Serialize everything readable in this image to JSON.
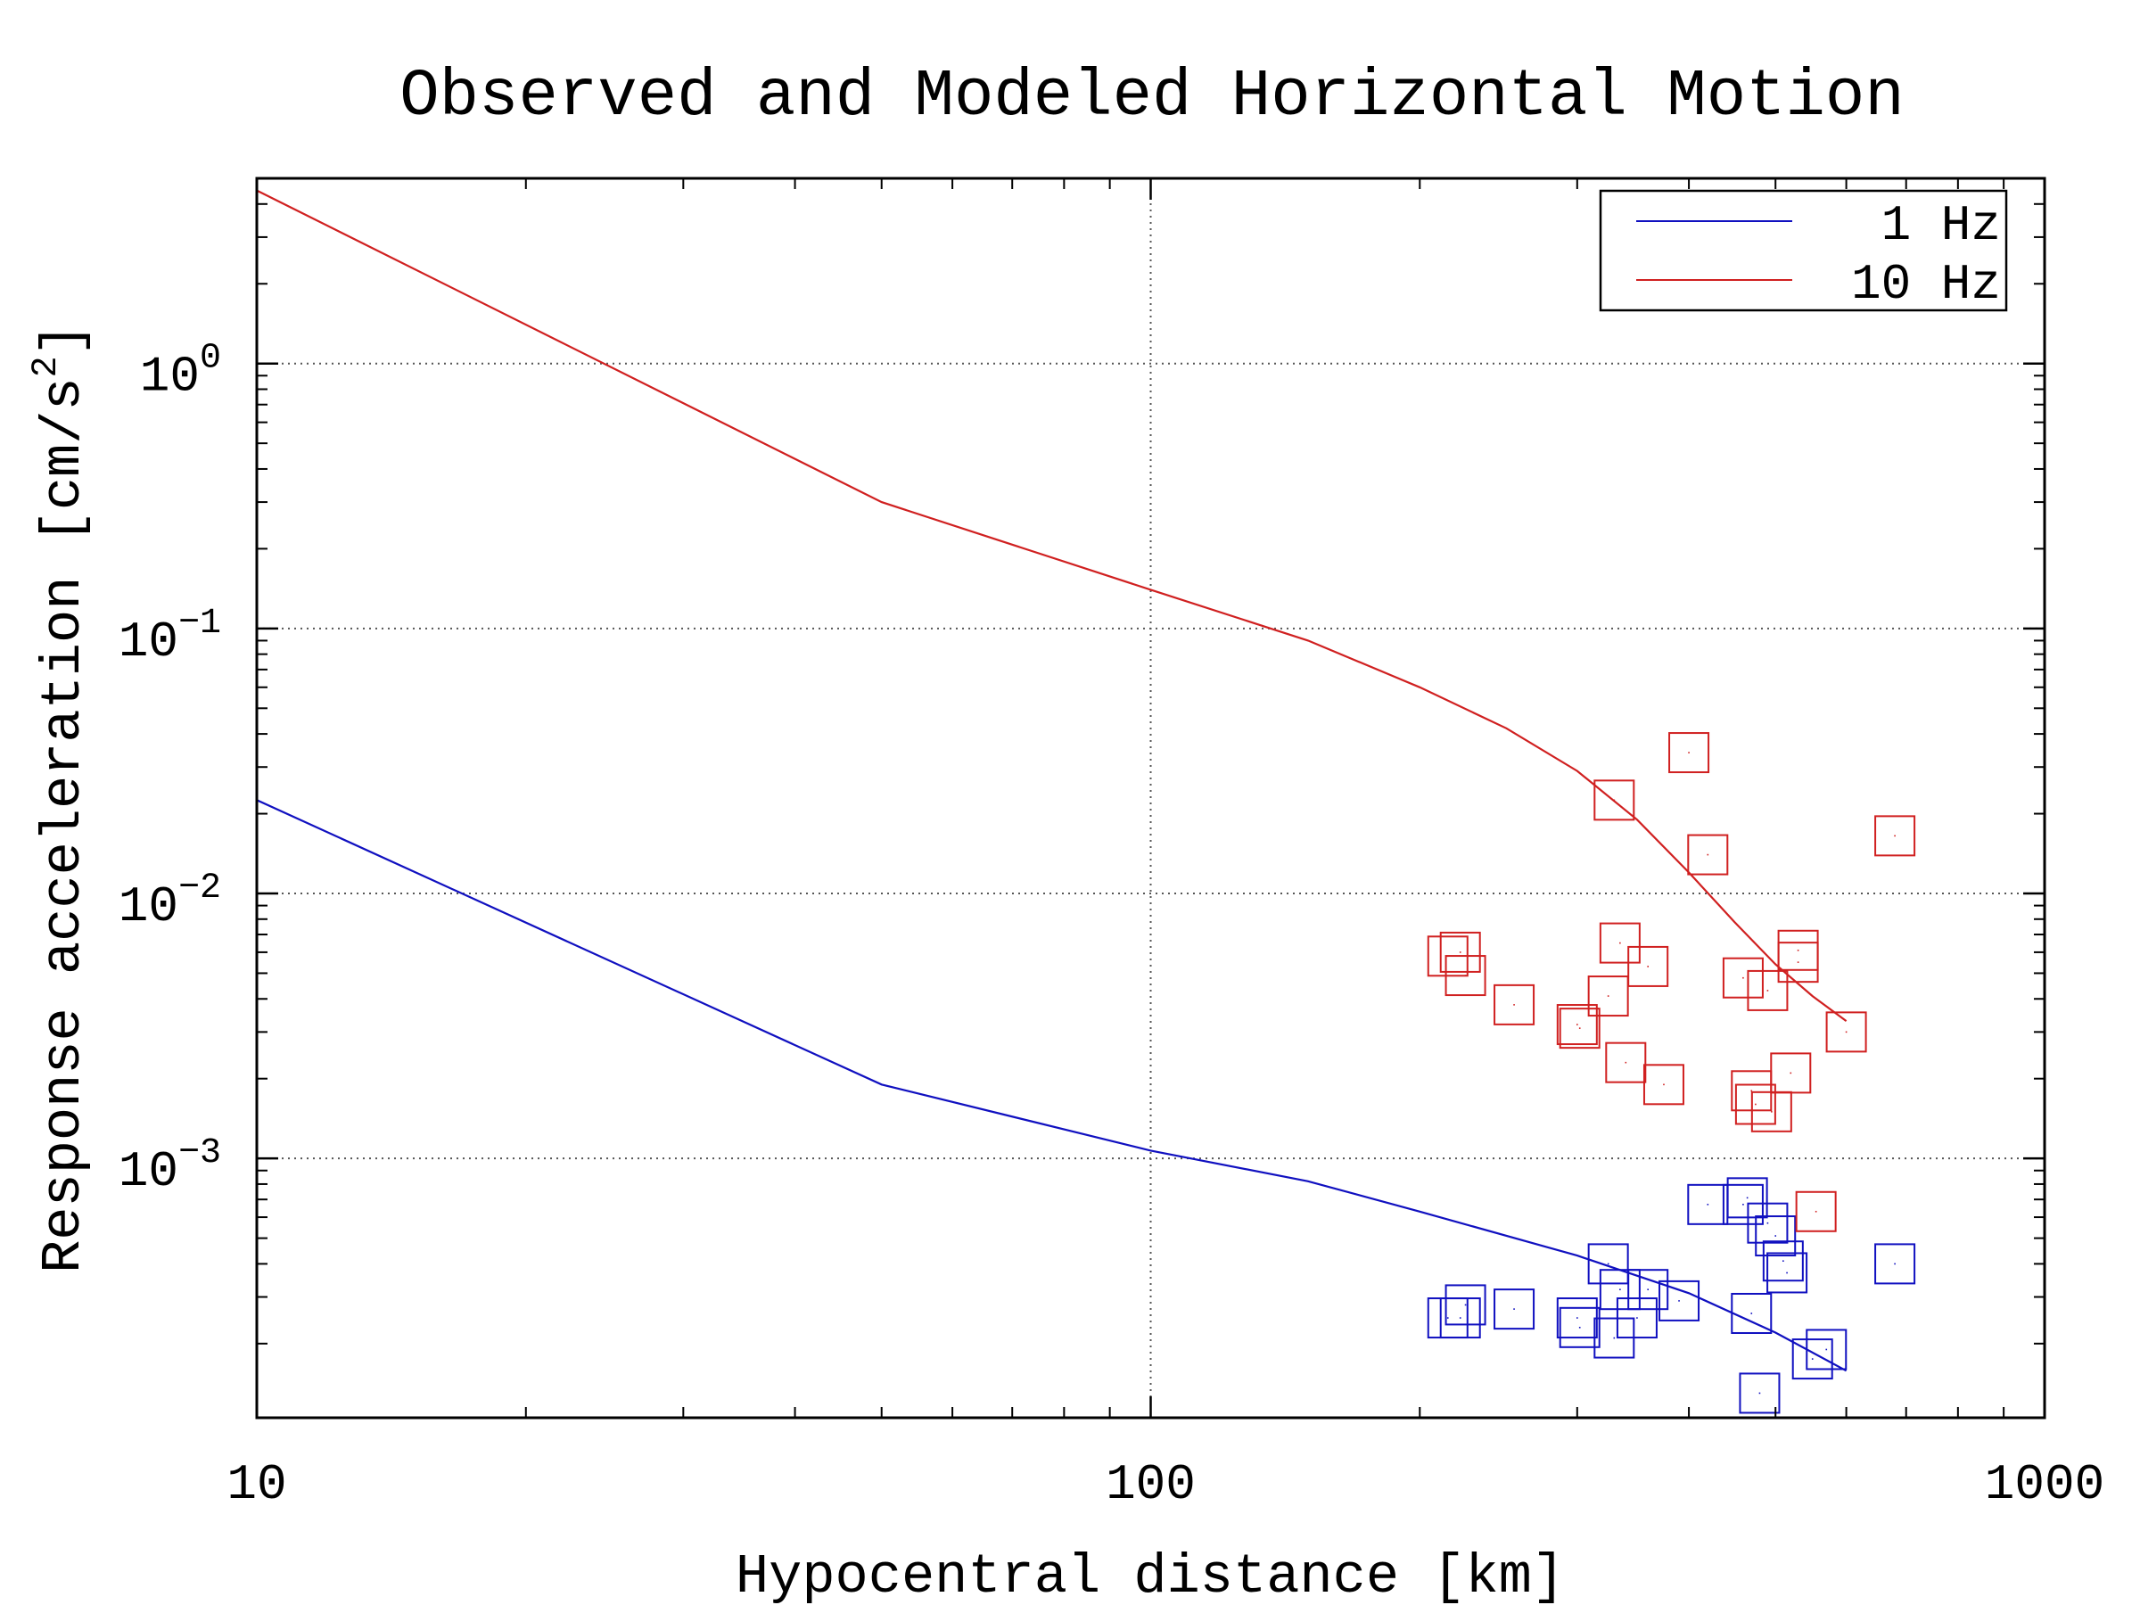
{
  "chart_data": {
    "type": "scatter",
    "title": "Observed and Modeled Horizontal Motion",
    "xlabel": "Hypocentral distance [km]",
    "ylabel": "Response acceleration [cm/s",
    "ylabel_sup": "2",
    "ylabel_close": "]",
    "x_scale": "log",
    "y_scale": "log",
    "xlim": [
      10,
      1000
    ],
    "ylim": [
      0.000105,
      5.0
    ],
    "x_ticks": [
      {
        "value": 10,
        "label": "10"
      },
      {
        "value": 100,
        "label": "100"
      },
      {
        "value": 1000,
        "label": "1000"
      }
    ],
    "y_ticks": [
      {
        "value": 1,
        "base": "10",
        "exp": "0"
      },
      {
        "value": 0.1,
        "base": "10",
        "exp": "−1"
      },
      {
        "value": 0.01,
        "base": "10",
        "exp": "−2"
      },
      {
        "value": 0.001,
        "base": "10",
        "exp": "−3"
      }
    ],
    "grid": true,
    "legend_position": "top-right",
    "colors": {
      "1 Hz": "#1010c0",
      "10 Hz": "#d02020"
    },
    "series": [
      {
        "name": "1 Hz",
        "kind": "model-line",
        "color": "#1010c0",
        "points": [
          [
            10,
            0.0225
          ],
          [
            50,
            0.0019
          ],
          [
            100,
            0.00107
          ],
          [
            150,
            0.00082
          ],
          [
            200,
            0.00063
          ],
          [
            300,
            0.00043
          ],
          [
            400,
            0.00031
          ],
          [
            500,
            0.00022
          ],
          [
            600,
            0.000158
          ]
        ]
      },
      {
        "name": "10 Hz",
        "kind": "model-line",
        "color": "#d02020",
        "points": [
          [
            10,
            4.5
          ],
          [
            50,
            0.3
          ],
          [
            100,
            0.14
          ],
          [
            150,
            0.09
          ],
          [
            200,
            0.06
          ],
          [
            250,
            0.042
          ],
          [
            300,
            0.029
          ],
          [
            350,
            0.019
          ],
          [
            400,
            0.012
          ],
          [
            450,
            0.0078
          ],
          [
            500,
            0.0054
          ],
          [
            550,
            0.0041
          ],
          [
            600,
            0.0033
          ]
        ]
      },
      {
        "name": "1 Hz observed",
        "kind": "observed",
        "color": "#1010c0",
        "points": [
          [
            215,
            0.00025
          ],
          [
            222,
            0.00025
          ],
          [
            225,
            0.00028
          ],
          [
            255,
            0.00027
          ],
          [
            300,
            0.00025
          ],
          [
            302,
            0.00023
          ],
          [
            325,
            0.0004
          ],
          [
            330,
            0.00021
          ],
          [
            335,
            0.00032
          ],
          [
            350,
            0.00025
          ],
          [
            360,
            0.00032
          ],
          [
            390,
            0.00029
          ],
          [
            420,
            0.00067
          ],
          [
            460,
            0.00067
          ],
          [
            465,
            0.00071
          ],
          [
            470,
            0.00026
          ],
          [
            480,
            0.00013
          ],
          [
            490,
            0.00057
          ],
          [
            500,
            0.00051
          ],
          [
            510,
            0.00041
          ],
          [
            515,
            0.00037
          ],
          [
            550,
            0.000175
          ],
          [
            570,
            0.00019
          ],
          [
            680,
            0.0004
          ]
        ]
      },
      {
        "name": "10 Hz observed",
        "kind": "observed",
        "color": "#d02020",
        "points": [
          [
            215,
            0.0058
          ],
          [
            222,
            0.006
          ],
          [
            225,
            0.0049
          ],
          [
            255,
            0.0038
          ],
          [
            300,
            0.0032
          ],
          [
            302,
            0.0031
          ],
          [
            325,
            0.0041
          ],
          [
            330,
            0.0225
          ],
          [
            335,
            0.0065
          ],
          [
            340,
            0.0023
          ],
          [
            360,
            0.0053
          ],
          [
            375,
            0.0019
          ],
          [
            400,
            0.034
          ],
          [
            420,
            0.014
          ],
          [
            460,
            0.0048
          ],
          [
            470,
            0.0018
          ],
          [
            475,
            0.0016
          ],
          [
            490,
            0.0043
          ],
          [
            495,
            0.0015
          ],
          [
            520,
            0.0021
          ],
          [
            530,
            0.0061
          ],
          [
            530,
            0.0055
          ],
          [
            555,
            0.00063
          ],
          [
            600,
            0.003
          ],
          [
            680,
            0.0165
          ]
        ]
      }
    ]
  }
}
